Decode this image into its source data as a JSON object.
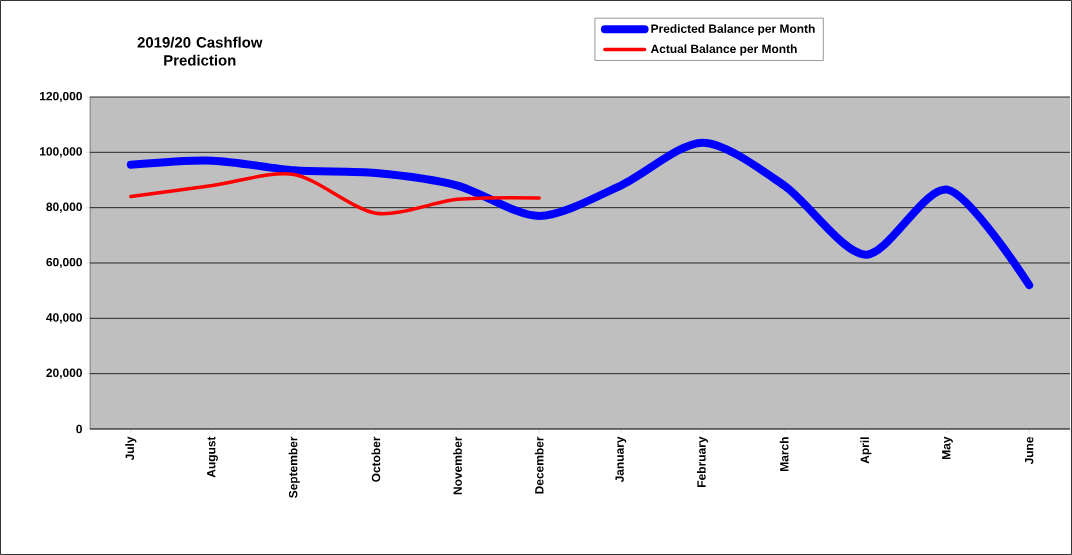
{
  "chart_data": {
    "type": "line",
    "title": "2019/20 Cashflow Prediction",
    "categories": [
      "July",
      "August",
      "September",
      "October",
      "November",
      "December",
      "January",
      "February",
      "March",
      "April",
      "May",
      "June"
    ],
    "series": [
      {
        "name": "Predicted Balance per Month",
        "color": "#0000ff",
        "values": [
          95500,
          97000,
          93500,
          92500,
          88000,
          77000,
          88000,
          103500,
          88000,
          63000,
          86500,
          52000
        ]
      },
      {
        "name": "Actual Balance per Month",
        "color": "#ff0000",
        "values": [
          84000,
          88000,
          92000,
          78000,
          83000,
          83500,
          null,
          null,
          null,
          null,
          null,
          null
        ]
      }
    ],
    "ylim": [
      0,
      120000
    ],
    "yticks": [
      {
        "value": 0,
        "label": "0"
      },
      {
        "value": 20000,
        "label": "20,000"
      },
      {
        "value": 40000,
        "label": "40,000"
      },
      {
        "value": 60000,
        "label": "60,000"
      },
      {
        "value": 80000,
        "label": "80,000"
      },
      {
        "value": 100000,
        "label": "100,000"
      },
      {
        "value": 120000,
        "label": "120,000"
      }
    ],
    "grid": "y",
    "legend": "top right",
    "marker": "none",
    "line_style": "solid"
  }
}
